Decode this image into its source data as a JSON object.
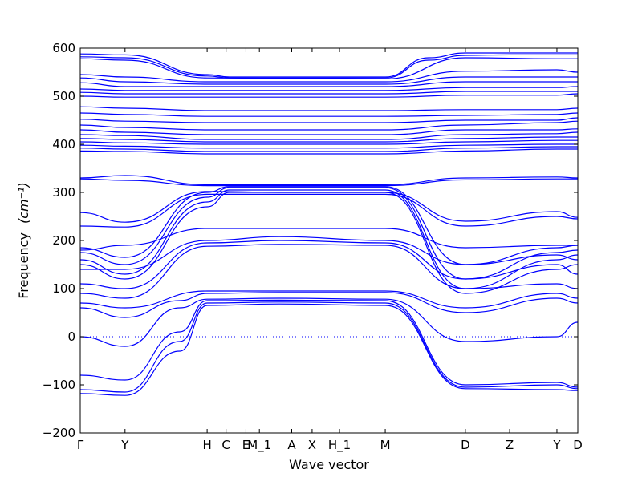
{
  "chart_data": {
    "type": "line",
    "title": "",
    "xlabel": "Wave vector",
    "ylabel": "Frequency",
    "ylabel_unit": "(cm⁻¹)",
    "ylim": [
      -200,
      600
    ],
    "yticks": [
      -200,
      -100,
      0,
      100,
      200,
      300,
      400,
      500,
      600
    ],
    "xlim": [
      0,
      1
    ],
    "xticks": [
      {
        "label": "Γ",
        "pos": 0.0
      },
      {
        "label": "Y",
        "pos": 0.09
      },
      {
        "label": "H",
        "pos": 0.255
      },
      {
        "label": "C",
        "pos": 0.293
      },
      {
        "label": "E",
        "pos": 0.333
      },
      {
        "label": "M_1",
        "pos": 0.36
      },
      {
        "label": "A",
        "pos": 0.425
      },
      {
        "label": "X",
        "pos": 0.466
      },
      {
        "label": "H_1",
        "pos": 0.521
      },
      {
        "label": "M",
        "pos": 0.613
      },
      {
        "label": "D",
        "pos": 0.774
      },
      {
        "label": "Z",
        "pos": 0.863
      },
      {
        "label": "Y",
        "pos": 0.958
      },
      {
        "label": "D",
        "pos": 1.0
      }
    ],
    "zero_line": true,
    "grid": false,
    "line_color": "#0000ff",
    "series": [
      {
        "x": [
          0,
          0.09,
          0.255,
          0.3,
          0.613,
          0.7,
          0.774,
          0.863,
          0.958,
          1
        ],
        "y": [
          588,
          586,
          545,
          540,
          540,
          580,
          590,
          590,
          590,
          590
        ]
      },
      {
        "x": [
          0,
          0.09,
          0.255,
          0.3,
          0.613,
          0.7,
          0.774,
          0.863,
          0.958,
          1
        ],
        "y": [
          582,
          580,
          542,
          538,
          538,
          575,
          585,
          586,
          586,
          586
        ]
      },
      {
        "x": [
          0,
          0.09,
          0.255,
          0.613,
          0.774,
          0.958,
          1
        ],
        "y": [
          578,
          575,
          538,
          536,
          580,
          578,
          578
        ]
      },
      {
        "x": [
          0,
          0.09,
          0.255,
          0.613,
          0.774,
          0.958,
          1
        ],
        "y": [
          545,
          540,
          530,
          530,
          552,
          555,
          550
        ]
      },
      {
        "x": [
          0,
          0.09,
          0.255,
          0.613,
          0.774,
          0.958,
          1
        ],
        "y": [
          538,
          530,
          525,
          525,
          540,
          540,
          540
        ]
      },
      {
        "x": [
          0,
          0.09,
          0.255,
          0.613,
          0.774,
          0.958,
          1
        ],
        "y": [
          528,
          520,
          520,
          520,
          530,
          530,
          530
        ]
      },
      {
        "x": [
          0,
          0.09,
          0.255,
          0.613,
          0.774,
          0.958,
          1
        ],
        "y": [
          515,
          512,
          512,
          512,
          518,
          518,
          520
        ]
      },
      {
        "x": [
          0,
          0.09,
          0.255,
          0.613,
          0.774,
          0.958,
          1
        ],
        "y": [
          508,
          505,
          505,
          505,
          510,
          510,
          510
        ]
      },
      {
        "x": [
          0,
          0.09,
          0.255,
          0.613,
          0.774,
          0.958,
          1
        ],
        "y": [
          500,
          498,
          498,
          498,
          502,
          502,
          505
        ]
      },
      {
        "x": [
          0,
          0.09,
          0.255,
          0.613,
          0.774,
          0.958,
          1
        ],
        "y": [
          478,
          475,
          470,
          470,
          472,
          472,
          475
        ]
      },
      {
        "x": [
          0,
          0.09,
          0.255,
          0.613,
          0.774,
          0.958,
          1
        ],
        "y": [
          465,
          462,
          458,
          458,
          460,
          462,
          465
        ]
      },
      {
        "x": [
          0,
          0.09,
          0.255,
          0.613,
          0.774,
          0.958,
          1
        ],
        "y": [
          452,
          448,
          445,
          445,
          450,
          450,
          455
        ]
      },
      {
        "x": [
          0,
          0.09,
          0.255,
          0.613,
          0.774,
          0.958,
          1
        ],
        "y": [
          440,
          435,
          430,
          430,
          440,
          445,
          448
        ]
      },
      {
        "x": [
          0,
          0.09,
          0.255,
          0.613,
          0.774,
          0.958,
          1
        ],
        "y": [
          430,
          425,
          420,
          420,
          430,
          430,
          432
        ]
      },
      {
        "x": [
          0,
          0.09,
          0.255,
          0.613,
          0.774,
          0.958,
          1
        ],
        "y": [
          420,
          418,
          410,
          410,
          420,
          422,
          425
        ]
      },
      {
        "x": [
          0,
          0.09,
          0.255,
          0.613,
          0.774,
          0.958,
          1
        ],
        "y": [
          412,
          410,
          405,
          405,
          412,
          415,
          415
        ]
      },
      {
        "x": [
          0,
          0.09,
          0.255,
          0.613,
          0.774,
          0.958,
          1
        ],
        "y": [
          405,
          403,
          400,
          400,
          405,
          408,
          408
        ]
      },
      {
        "x": [
          0,
          0.09,
          0.255,
          0.613,
          0.774,
          0.958,
          1
        ],
        "y": [
          398,
          396,
          392,
          392,
          398,
          400,
          400
        ]
      },
      {
        "x": [
          0,
          0.09,
          0.255,
          0.613,
          0.774,
          0.958,
          1
        ],
        "y": [
          392,
          390,
          385,
          385,
          392,
          395,
          395
        ]
      },
      {
        "x": [
          0,
          0.09,
          0.255,
          0.613,
          0.774,
          0.958,
          1
        ],
        "y": [
          386,
          385,
          380,
          380,
          386,
          390,
          390
        ]
      },
      {
        "x": [
          0,
          0.09,
          0.255,
          0.613,
          0.774,
          0.958,
          1
        ],
        "y": [
          330,
          335,
          316,
          316,
          330,
          332,
          330
        ]
      },
      {
        "x": [
          0,
          0.09,
          0.255,
          0.613,
          0.774,
          0.958,
          1
        ],
        "y": [
          328,
          325,
          314,
          314,
          326,
          328,
          328
        ]
      },
      {
        "x": [
          0,
          0.09,
          0.255,
          0.4,
          0.613,
          0.774,
          0.958,
          1
        ],
        "y": [
          258,
          238,
          302,
          300,
          300,
          240,
          260,
          248
        ]
      },
      {
        "x": [
          0,
          0.09,
          0.255,
          0.4,
          0.613,
          0.774,
          0.958,
          1
        ],
        "y": [
          230,
          228,
          296,
          296,
          296,
          230,
          250,
          245
        ]
      },
      {
        "x": [
          0,
          0.09,
          0.255,
          0.3,
          0.613,
          0.774,
          0.958,
          1
        ],
        "y": [
          185,
          165,
          300,
          312,
          312,
          150,
          185,
          190
        ]
      },
      {
        "x": [
          0,
          0.09,
          0.255,
          0.3,
          0.613,
          0.774,
          0.958,
          1
        ],
        "y": [
          175,
          150,
          290,
          310,
          310,
          120,
          175,
          180
        ]
      },
      {
        "x": [
          0,
          0.09,
          0.255,
          0.3,
          0.613,
          0.774,
          0.958,
          1
        ],
        "y": [
          160,
          130,
          280,
          305,
          305,
          100,
          160,
          170
        ]
      },
      {
        "x": [
          0,
          0.09,
          0.255,
          0.3,
          0.613,
          0.774,
          0.958,
          1
        ],
        "y": [
          150,
          120,
          270,
          300,
          300,
          90,
          140,
          150
        ]
      },
      {
        "x": [
          0,
          0.09,
          0.255,
          0.4,
          0.613,
          0.774,
          0.958,
          1
        ],
        "y": [
          180,
          190,
          225,
          225,
          225,
          185,
          190,
          190
        ]
      },
      {
        "x": [
          0,
          0.09,
          0.255,
          0.4,
          0.613,
          0.774,
          0.958,
          1
        ],
        "y": [
          140,
          140,
          200,
          208,
          200,
          150,
          170,
          160
        ]
      },
      {
        "x": [
          0,
          0.09,
          0.255,
          0.4,
          0.613,
          0.774,
          0.958,
          1
        ],
        "y": [
          110,
          100,
          195,
          200,
          195,
          120,
          150,
          130
        ]
      },
      {
        "x": [
          0,
          0.09,
          0.255,
          0.4,
          0.613,
          0.774,
          0.958,
          1
        ],
        "y": [
          90,
          80,
          188,
          192,
          190,
          100,
          110,
          100
        ]
      },
      {
        "x": [
          0,
          0.09,
          0.255,
          0.4,
          0.613,
          0.774,
          0.958,
          1
        ],
        "y": [
          70,
          60,
          95,
          95,
          95,
          60,
          90,
          80
        ]
      },
      {
        "x": [
          0,
          0.09,
          0.2,
          0.255,
          0.4,
          0.613,
          0.774,
          0.958,
          1
        ],
        "y": [
          60,
          40,
          75,
          90,
          92,
          92,
          50,
          80,
          70
        ]
      },
      {
        "x": [
          0,
          0.09,
          0.2,
          0.255,
          0.4,
          0.613,
          0.774,
          0.958,
          1
        ],
        "y": [
          0,
          -20,
          60,
          78,
          80,
          78,
          -10,
          0,
          30
        ]
      },
      {
        "x": [
          0,
          0.09,
          0.2,
          0.255,
          0.4,
          0.613,
          0.774,
          0.958,
          1
        ],
        "y": [
          -80,
          -90,
          10,
          75,
          76,
          75,
          -100,
          -95,
          -105
        ]
      },
      {
        "x": [
          0,
          0.09,
          0.2,
          0.255,
          0.4,
          0.613,
          0.774,
          0.958,
          1
        ],
        "y": [
          -110,
          -115,
          -10,
          70,
          72,
          70,
          -105,
          -100,
          -108
        ]
      },
      {
        "x": [
          0,
          0.09,
          0.2,
          0.255,
          0.4,
          0.613,
          0.774,
          0.958,
          1
        ],
        "y": [
          -118,
          -122,
          -30,
          65,
          68,
          65,
          -108,
          -110,
          -112
        ]
      }
    ]
  }
}
